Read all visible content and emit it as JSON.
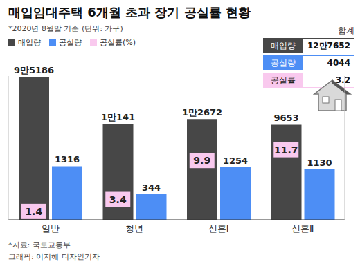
{
  "chart_data": {
    "type": "bar",
    "title": "매입임대주택 6개월 초과 장기 공실률 현황",
    "subtitle": "*2020년 8월말 기준 (단위: 가구)",
    "categories": [
      "일반",
      "청년",
      "신혼Ⅰ",
      "신혼Ⅱ"
    ],
    "series": [
      {
        "name": "매입량",
        "color": "#474747",
        "values": [
          95186,
          10141,
          12672,
          9653
        ],
        "value_labels": [
          "9만5186",
          "1만141",
          "1만2672",
          "9653"
        ]
      },
      {
        "name": "공실량",
        "color": "#4d8ef5",
        "values": [
          1316,
          344,
          1254,
          1130
        ]
      },
      {
        "name": "공실률(%)",
        "color": "#f9c9ee",
        "values": [
          1.4,
          3.4,
          9.9,
          11.7
        ],
        "axis": "y2",
        "type": "scatter",
        "marker": "square"
      }
    ],
    "log": "y",
    "ylim": [
      100,
      100000
    ],
    "y2lim": [
      0,
      24
    ],
    "data_labels": true,
    "tick_labels": "x",
    "legend": "top-left"
  },
  "summary": {
    "title": "합계",
    "rows": [
      {
        "label": "매입량",
        "value": 127652,
        "value_label": "12만7652"
      },
      {
        "label": "공실량",
        "value": 4044
      },
      {
        "label": "공실률",
        "value": 3.2
      }
    ]
  },
  "notes": [
    "*자료: 국토교통부",
    "그래픽: 이지혜 디자인기자"
  ]
}
